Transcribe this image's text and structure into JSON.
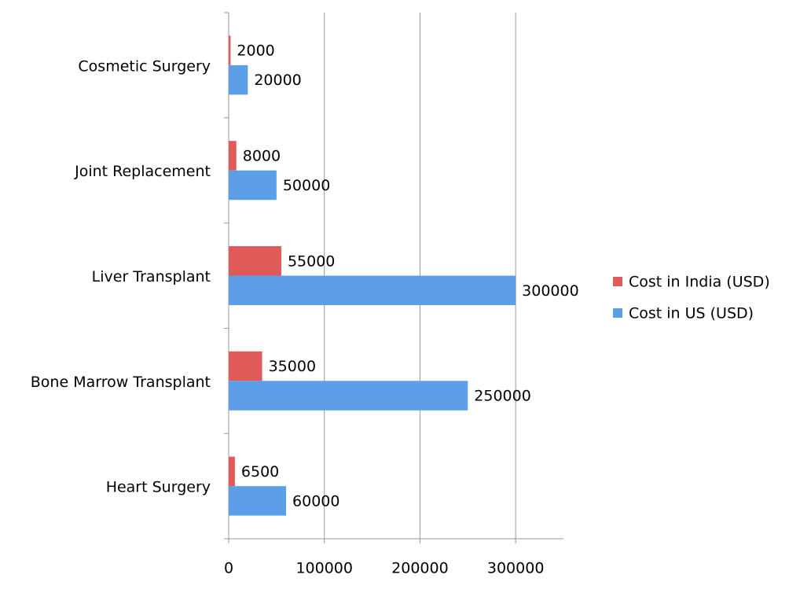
{
  "chart_data": {
    "type": "bar",
    "orientation": "horizontal",
    "categories": [
      "Cosmetic Surgery",
      "Joint Replacement",
      "Liver Transplant",
      "Bone Marrow Transplant",
      "Heart Surgery"
    ],
    "series": [
      {
        "name": "Cost in India (USD)",
        "color": "#e05a5a",
        "values": [
          2000,
          8000,
          55000,
          35000,
          6500
        ]
      },
      {
        "name": "Cost in US (USD)",
        "color": "#5d9ee8",
        "values": [
          20000,
          50000,
          300000,
          250000,
          60000
        ]
      }
    ],
    "xlim": [
      0,
      350000
    ],
    "xticks": [
      0,
      100000,
      200000,
      300000
    ],
    "grid": true,
    "legend": "right"
  }
}
